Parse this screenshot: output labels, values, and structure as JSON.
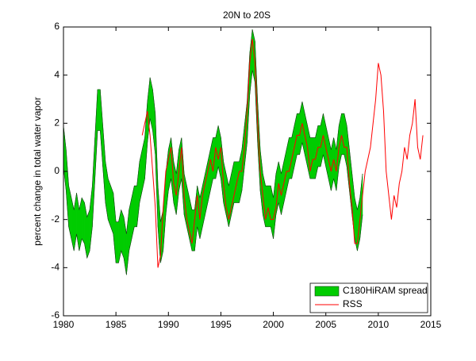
{
  "chart_data": {
    "type": "band_line",
    "title": "20N to 20S",
    "ylabel": "percent change in total water vapor",
    "xlim": [
      1980,
      2015
    ],
    "xticks": [
      1980,
      1985,
      1990,
      1995,
      2000,
      2005,
      2010,
      2015
    ],
    "ylim": [
      -6,
      6
    ],
    "yticks": [
      -6,
      -4,
      -2,
      0,
      2,
      4,
      6
    ],
    "legend": "lower right",
    "series": [
      {
        "name": "C180HiRAM spread",
        "color": "#00cc00",
        "x": [
          1980,
          1980.25,
          1980.5,
          1980.75,
          1981,
          1981.25,
          1981.5,
          1981.75,
          1982,
          1982.25,
          1982.5,
          1982.75,
          1983,
          1983.25,
          1983.5,
          1983.75,
          1984,
          1984.25,
          1984.5,
          1984.75,
          1985,
          1985.25,
          1985.5,
          1985.75,
          1986,
          1986.25,
          1986.5,
          1986.75,
          1987,
          1987.25,
          1987.5,
          1987.75,
          1988,
          1988.25,
          1988.5,
          1988.75,
          1989,
          1989.25,
          1989.5,
          1989.75,
          1990,
          1990.25,
          1990.5,
          1990.75,
          1991,
          1991.25,
          1991.5,
          1991.75,
          1992,
          1992.25,
          1992.5,
          1992.75,
          1993,
          1993.25,
          1993.5,
          1993.75,
          1994,
          1994.25,
          1994.5,
          1994.75,
          1995,
          1995.25,
          1995.5,
          1995.75,
          1996,
          1996.25,
          1996.5,
          1996.75,
          1997,
          1997.25,
          1997.5,
          1997.75,
          1998,
          1998.25,
          1998.5,
          1998.75,
          1999,
          1999.25,
          1999.5,
          1999.75,
          2000,
          2000.25,
          2000.5,
          2000.75,
          2001,
          2001.25,
          2001.5,
          2001.75,
          2002,
          2002.25,
          2002.5,
          2002.75,
          2003,
          2003.25,
          2003.5,
          2003.75,
          2004,
          2004.25,
          2004.5,
          2004.75,
          2005,
          2005.25,
          2005.5,
          2005.75,
          2006,
          2006.25,
          2006.5,
          2006.75,
          2007,
          2007.25,
          2007.5,
          2007.75,
          2008,
          2008.25,
          2008.5
        ],
        "low": [
          0.2,
          -0.8,
          -2.3,
          -2.8,
          -3.3,
          -2.6,
          -3.3,
          -2.8,
          -3.0,
          -3.6,
          -3.3,
          -2.3,
          -0.3,
          1.7,
          1.7,
          0.2,
          -1.3,
          -2.0,
          -2.3,
          -2.6,
          -3.8,
          -3.8,
          -3.3,
          -3.6,
          -4.3,
          -3.3,
          -2.8,
          -2.3,
          -2.3,
          -1.3,
          -0.8,
          -0.3,
          1.2,
          2.2,
          1.7,
          0.7,
          -2.3,
          -3.8,
          -3.3,
          -1.8,
          -0.8,
          -0.3,
          -1.3,
          -1.8,
          -0.8,
          -0.3,
          -1.8,
          -2.3,
          -2.8,
          -3.3,
          -3.3,
          -2.3,
          -2.8,
          -2.3,
          -1.8,
          -1.3,
          -0.8,
          -0.3,
          -0.3,
          0.2,
          -0.3,
          -1.3,
          -1.8,
          -2.3,
          -1.8,
          -1.3,
          -1.3,
          -1.3,
          -0.8,
          0.2,
          1.2,
          3.2,
          4.2,
          3.7,
          1.2,
          -0.8,
          -1.8,
          -2.3,
          -2.3,
          -2.3,
          -2.8,
          -1.8,
          -1.3,
          -1.8,
          -1.3,
          -0.8,
          -0.3,
          -0.3,
          0.2,
          0.7,
          0.7,
          1.2,
          0.7,
          0.2,
          -0.3,
          -0.3,
          -0.3,
          0.2,
          0.2,
          0.7,
          0.2,
          -0.3,
          -0.8,
          -0.3,
          -0.8,
          0.2,
          0.7,
          0.7,
          0.2,
          -0.8,
          -1.8,
          -2.8,
          -3.3,
          -2.8,
          -1.8
        ],
        "high": [
          1.9,
          0.9,
          -0.6,
          -1.1,
          -1.6,
          -0.9,
          -1.6,
          -1.1,
          -1.3,
          -1.9,
          -1.6,
          -0.6,
          1.4,
          3.4,
          3.4,
          1.9,
          0.4,
          -0.3,
          -0.6,
          -0.9,
          -2.1,
          -2.1,
          -1.6,
          -1.9,
          -2.6,
          -1.6,
          -1.1,
          -0.6,
          -0.6,
          0.4,
          0.9,
          1.4,
          2.9,
          3.9,
          3.4,
          2.4,
          -0.6,
          -2.1,
          -1.6,
          -0.1,
          0.9,
          1.4,
          0.4,
          -0.1,
          0.9,
          1.4,
          -0.1,
          -0.6,
          -1.1,
          -1.6,
          -1.6,
          -0.6,
          -1.1,
          -0.6,
          -0.1,
          0.4,
          0.9,
          1.4,
          1.4,
          1.9,
          1.4,
          0.4,
          -0.1,
          -0.6,
          -0.1,
          0.4,
          0.4,
          0.4,
          0.9,
          1.9,
          2.9,
          4.9,
          5.9,
          5.4,
          2.9,
          0.9,
          -0.1,
          -0.6,
          -0.6,
          -0.6,
          -1.1,
          -0.1,
          0.4,
          -0.1,
          0.4,
          0.9,
          1.4,
          1.4,
          1.9,
          2.4,
          2.4,
          2.9,
          2.4,
          1.9,
          1.4,
          1.4,
          1.4,
          1.9,
          1.9,
          2.4,
          1.9,
          1.4,
          0.9,
          1.4,
          0.9,
          1.9,
          2.4,
          2.4,
          1.9,
          0.9,
          -0.1,
          -1.1,
          -1.6,
          -1.1,
          -0.1
        ]
      },
      {
        "name": "RSS",
        "color": "#ff0000",
        "x": [
          1987.5,
          1987.75,
          1988,
          1988.25,
          1988.5,
          1988.75,
          1989,
          1989.25,
          1989.5,
          1989.75,
          1990,
          1990.25,
          1990.5,
          1990.75,
          1991,
          1991.25,
          1991.5,
          1991.75,
          1992,
          1992.25,
          1992.5,
          1992.75,
          1993,
          1993.25,
          1993.5,
          1993.75,
          1994,
          1994.25,
          1994.5,
          1994.75,
          1995,
          1995.25,
          1995.5,
          1995.75,
          1996,
          1996.25,
          1996.5,
          1996.75,
          1997,
          1997.25,
          1997.5,
          1997.75,
          1998,
          1998.25,
          1998.5,
          1998.75,
          1999,
          1999.25,
          1999.5,
          1999.75,
          2000,
          2000.25,
          2000.5,
          2000.75,
          2001,
          2001.25,
          2001.5,
          2001.75,
          2002,
          2002.25,
          2002.5,
          2002.75,
          2003,
          2003.25,
          2003.5,
          2003.75,
          2004,
          2004.25,
          2004.5,
          2004.75,
          2005,
          2005.25,
          2005.5,
          2005.75,
          2006,
          2006.25,
          2006.5,
          2006.75,
          2007,
          2007.25,
          2007.5,
          2007.75,
          2008,
          2008.25,
          2008.5,
          2008.75,
          2009,
          2009.25,
          2009.5,
          2009.75,
          2010,
          2010.25,
          2010.5,
          2010.75,
          2011,
          2011.25,
          2011.5,
          2011.75,
          2012,
          2012.25,
          2012.5,
          2012.75,
          2013,
          2013.25,
          2013.5,
          2013.75,
          2014,
          2014.25
        ],
        "values": [
          1.5,
          2.0,
          2.5,
          1.5,
          0,
          -1.5,
          -4,
          -3.5,
          -1.5,
          0,
          0.5,
          1,
          -0.5,
          -1,
          0,
          1,
          -1,
          -2,
          -2.5,
          -3,
          -2,
          -1,
          -2,
          -1,
          -0.5,
          0,
          0.5,
          0,
          1,
          0.5,
          1,
          -0.5,
          -1.5,
          -2,
          -1.5,
          -1,
          -0.5,
          0,
          0,
          1,
          2.5,
          4.5,
          5.5,
          4.5,
          2,
          0,
          -1,
          -2,
          -1.5,
          -2,
          -2,
          -1.5,
          -0.5,
          -1,
          -0.5,
          0,
          0,
          0.5,
          1,
          1.5,
          1.5,
          2,
          1.5,
          1,
          0,
          0.5,
          0.5,
          1,
          1,
          1.5,
          1,
          0.5,
          0,
          0.5,
          0,
          1,
          1.5,
          1,
          1,
          -0.5,
          -1.5,
          -3,
          -3,
          -2,
          -1,
          0,
          0.5,
          1,
          2,
          3,
          4.5,
          4,
          2.5,
          0,
          -1,
          -2,
          -1,
          -1.5,
          -0.5,
          0,
          1,
          0.5,
          1.5,
          2,
          3,
          1,
          0.5,
          1.5
        ]
      }
    ]
  }
}
